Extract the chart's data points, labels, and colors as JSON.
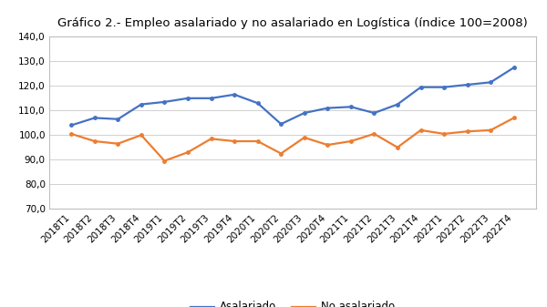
{
  "title": "Gráfico 2.- Empleo asalariado y no asalariado en Logística (índice 100=2008)",
  "x_labels": [
    "2018T1",
    "2018T2",
    "2018T3",
    "2018T4",
    "2019T1",
    "2019T2",
    "2019T3",
    "2019T4",
    "2020T1",
    "2020T2",
    "2020T3",
    "2020T4",
    "2021T1",
    "2021T2",
    "2021T3",
    "2021T4",
    "2022T1",
    "2022T2",
    "2022T3",
    "2022T4"
  ],
  "asalariado": [
    104.0,
    107.0,
    106.5,
    112.5,
    113.5,
    115.0,
    115.0,
    116.5,
    113.0,
    104.5,
    109.0,
    111.0,
    111.5,
    109.0,
    112.5,
    119.5,
    119.5,
    120.5,
    121.5,
    127.5
  ],
  "no_asalariado": [
    100.5,
    97.5,
    96.5,
    100.0,
    89.5,
    93.0,
    98.5,
    97.5,
    97.5,
    92.5,
    99.0,
    96.0,
    97.5,
    100.5,
    95.0,
    102.0,
    100.5,
    101.5,
    102.0,
    107.0
  ],
  "asalariado_color": "#4472C4",
  "no_asalariado_color": "#ED7D31",
  "legend_labels": [
    "Asalariado",
    "No asalariado"
  ],
  "ylim": [
    70.0,
    140.0
  ],
  "yticks": [
    70.0,
    80.0,
    90.0,
    100.0,
    110.0,
    120.0,
    130.0,
    140.0
  ],
  "title_fontsize": 9.5,
  "tick_fontsize": 7.5,
  "legend_fontsize": 8.5,
  "background_color": "#ffffff",
  "plot_bg_color": "#ffffff",
  "grid_color": "#d0d0d0",
  "border_color": "#bfbfbf"
}
